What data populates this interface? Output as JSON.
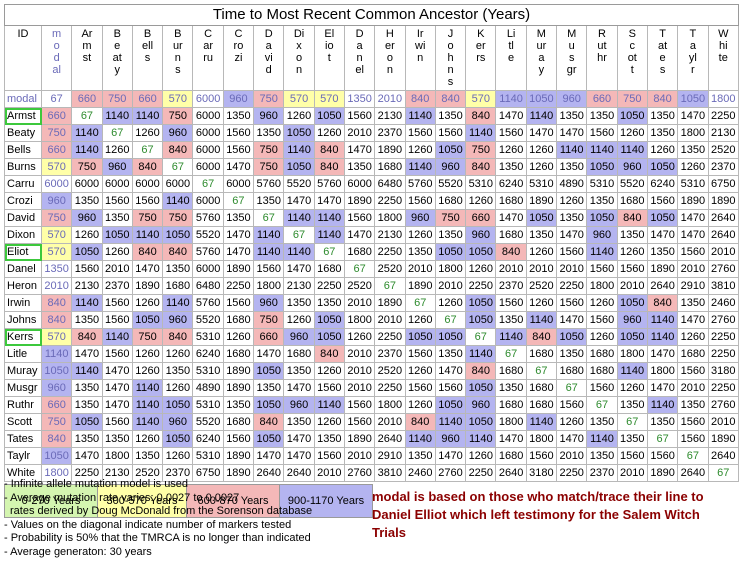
{
  "title": "Time to Most Recent Common Ancestor (Years)",
  "id_header": "ID",
  "columns": [
    "modal",
    "Armst",
    "Beaty",
    "Bells",
    "Burns",
    "Carru",
    "Crozi",
    "David",
    "Dixon",
    "Eliot",
    "Danel",
    "Heron",
    "Irwin",
    "Johns",
    "Kerrs",
    "Litle",
    "Muray",
    "Musgr",
    "Ruthr",
    "Scott",
    "Tates",
    "Taylr",
    "White"
  ],
  "rows": [
    {
      "label": "modal",
      "values": [
        "67",
        "660",
        "750",
        "660",
        "570",
        "6000",
        "960",
        "750",
        "570",
        "570",
        "1350",
        "2010",
        "840",
        "840",
        "570",
        "1140",
        "1050",
        "960",
        "660",
        "750",
        "840",
        "1050",
        "1800"
      ]
    },
    {
      "label": "Armst",
      "values": [
        "660",
        "67",
        "1140",
        "1140",
        "750",
        "6000",
        "1350",
        "960",
        "1260",
        "1050",
        "1560",
        "2130",
        "1140",
        "1350",
        "840",
        "1470",
        "1140",
        "1350",
        "1350",
        "1050",
        "1350",
        "1470",
        "2250"
      ]
    },
    {
      "label": "Beaty",
      "values": [
        "750",
        "1140",
        "67",
        "1260",
        "960",
        "6000",
        "1560",
        "1350",
        "1050",
        "1260",
        "2010",
        "2370",
        "1560",
        "1560",
        "1140",
        "1560",
        "1470",
        "1470",
        "1560",
        "1260",
        "1350",
        "1800",
        "2130"
      ]
    },
    {
      "label": "Bells",
      "values": [
        "660",
        "1140",
        "1260",
        "67",
        "840",
        "6000",
        "1560",
        "750",
        "1140",
        "840",
        "1470",
        "1890",
        "1260",
        "1050",
        "750",
        "1260",
        "1260",
        "1140",
        "1140",
        "1140",
        "1260",
        "1350",
        "2520"
      ]
    },
    {
      "label": "Burns",
      "values": [
        "570",
        "750",
        "960",
        "840",
        "67",
        "6000",
        "1470",
        "750",
        "1050",
        "840",
        "1350",
        "1680",
        "1140",
        "960",
        "840",
        "1350",
        "1260",
        "1350",
        "1050",
        "960",
        "1050",
        "1260",
        "2370"
      ]
    },
    {
      "label": "Carru",
      "values": [
        "6000",
        "6000",
        "6000",
        "6000",
        "6000",
        "67",
        "6000",
        "5760",
        "5520",
        "5760",
        "6000",
        "6480",
        "5760",
        "5520",
        "5310",
        "6240",
        "5310",
        "4890",
        "5310",
        "5520",
        "6240",
        "5310",
        "6750"
      ]
    },
    {
      "label": "Crozi",
      "values": [
        "960",
        "1350",
        "1560",
        "1560",
        "1140",
        "6000",
        "67",
        "1350",
        "1470",
        "1470",
        "1890",
        "2250",
        "1560",
        "1680",
        "1260",
        "1680",
        "1890",
        "1260",
        "1350",
        "1680",
        "1560",
        "1890",
        "1890"
      ]
    },
    {
      "label": "David",
      "values": [
        "750",
        "960",
        "1350",
        "750",
        "750",
        "5760",
        "1350",
        "67",
        "1140",
        "1140",
        "1560",
        "1800",
        "960",
        "750",
        "660",
        "1470",
        "1050",
        "1350",
        "1050",
        "840",
        "1050",
        "1470",
        "2640"
      ]
    },
    {
      "label": "Dixon",
      "values": [
        "570",
        "1260",
        "1050",
        "1140",
        "1050",
        "5520",
        "1470",
        "1140",
        "67",
        "1140",
        "1470",
        "2130",
        "1260",
        "1350",
        "960",
        "1680",
        "1350",
        "1470",
        "960",
        "1350",
        "1470",
        "1470",
        "2640"
      ]
    },
    {
      "label": "Eliot",
      "values": [
        "570",
        "1050",
        "1260",
        "840",
        "840",
        "5760",
        "1470",
        "1140",
        "1140",
        "67",
        "1680",
        "2250",
        "1350",
        "1050",
        "1050",
        "840",
        "1260",
        "1560",
        "1140",
        "1260",
        "1350",
        "1560",
        "2010"
      ]
    },
    {
      "label": "Danel",
      "values": [
        "1350",
        "1560",
        "2010",
        "1470",
        "1350",
        "6000",
        "1890",
        "1560",
        "1470",
        "1680",
        "67",
        "2520",
        "2010",
        "1800",
        "1260",
        "2010",
        "2010",
        "2010",
        "1560",
        "1560",
        "1890",
        "2010",
        "2760"
      ]
    },
    {
      "label": "Heron",
      "values": [
        "2010",
        "2130",
        "2370",
        "1890",
        "1680",
        "6480",
        "2250",
        "1800",
        "2130",
        "2250",
        "2520",
        "67",
        "1890",
        "2010",
        "2250",
        "2370",
        "2520",
        "2250",
        "1800",
        "2010",
        "2640",
        "2910",
        "3810"
      ]
    },
    {
      "label": "Irwin",
      "values": [
        "840",
        "1140",
        "1560",
        "1260",
        "1140",
        "5760",
        "1560",
        "960",
        "1350",
        "1350",
        "2010",
        "1890",
        "67",
        "1260",
        "1050",
        "1560",
        "1260",
        "1560",
        "1260",
        "1050",
        "840",
        "1350",
        "2460"
      ]
    },
    {
      "label": "Johns",
      "values": [
        "840",
        "1350",
        "1560",
        "1050",
        "960",
        "5520",
        "1680",
        "750",
        "1260",
        "1050",
        "1800",
        "2010",
        "1260",
        "67",
        "1050",
        "1350",
        "1140",
        "1470",
        "1560",
        "960",
        "1140",
        "1470",
        "2760"
      ]
    },
    {
      "label": "Kerrs",
      "values": [
        "570",
        "840",
        "1140",
        "750",
        "840",
        "5310",
        "1260",
        "660",
        "960",
        "1050",
        "1260",
        "2250",
        "1050",
        "1050",
        "67",
        "1140",
        "840",
        "1050",
        "1260",
        "1050",
        "1140",
        "1260",
        "2250"
      ]
    },
    {
      "label": "Litle",
      "values": [
        "1140",
        "1470",
        "1560",
        "1260",
        "1260",
        "6240",
        "1680",
        "1470",
        "1680",
        "840",
        "2010",
        "2370",
        "1560",
        "1350",
        "1140",
        "67",
        "1680",
        "1350",
        "1680",
        "1800",
        "1470",
        "1680",
        "2250"
      ]
    },
    {
      "label": "Muray",
      "values": [
        "1050",
        "1140",
        "1470",
        "1260",
        "1350",
        "5310",
        "1890",
        "1050",
        "1350",
        "1260",
        "2010",
        "2520",
        "1260",
        "1470",
        "840",
        "1680",
        "67",
        "1680",
        "1680",
        "1140",
        "1800",
        "1560",
        "3180"
      ]
    },
    {
      "label": "Musgr",
      "values": [
        "960",
        "1350",
        "1470",
        "1140",
        "1260",
        "4890",
        "1890",
        "1350",
        "1470",
        "1560",
        "2010",
        "2250",
        "1560",
        "1560",
        "1050",
        "1350",
        "1680",
        "67",
        "1560",
        "1260",
        "1470",
        "2010",
        "2250"
      ]
    },
    {
      "label": "Ruthr",
      "values": [
        "660",
        "1350",
        "1470",
        "1140",
        "1050",
        "5310",
        "1350",
        "1050",
        "960",
        "1140",
        "1560",
        "1800",
        "1260",
        "1050",
        "960",
        "1680",
        "1680",
        "1560",
        "67",
        "1350",
        "1140",
        "1350",
        "2760"
      ]
    },
    {
      "label": "Scott",
      "values": [
        "750",
        "1050",
        "1560",
        "1140",
        "960",
        "5520",
        "1680",
        "840",
        "1350",
        "1260",
        "1560",
        "2010",
        "840",
        "1140",
        "1050",
        "1800",
        "1140",
        "1260",
        "1350",
        "67",
        "1350",
        "1560",
        "2010"
      ]
    },
    {
      "label": "Tates",
      "values": [
        "840",
        "1350",
        "1350",
        "1260",
        "1050",
        "6240",
        "1560",
        "1050",
        "1470",
        "1350",
        "1890",
        "2640",
        "1140",
        "960",
        "1140",
        "1470",
        "1800",
        "1470",
        "1140",
        "1350",
        "67",
        "1560",
        "1890"
      ]
    },
    {
      "label": "Taylr",
      "values": [
        "1050",
        "1470",
        "1800",
        "1350",
        "1260",
        "5310",
        "1890",
        "1470",
        "1470",
        "1560",
        "2010",
        "2910",
        "1350",
        "1470",
        "1260",
        "1680",
        "1560",
        "2010",
        "1350",
        "1560",
        "1560",
        "67",
        "2640"
      ]
    },
    {
      "label": "White",
      "values": [
        "1800",
        "2250",
        "2130",
        "2520",
        "2370",
        "6750",
        "1890",
        "2640",
        "2640",
        "2010",
        "2760",
        "3810",
        "2460",
        "2760",
        "2250",
        "2640",
        "3180",
        "2250",
        "2370",
        "2010",
        "1890",
        "2640",
        "67"
      ]
    }
  ],
  "highlighted_rows": [
    "Armst",
    "Eliot",
    "Kerrs"
  ],
  "legend": [
    {
      "label": "0-270 Years",
      "color": "#d4f5b0"
    },
    {
      "label": "300-570 Years",
      "color": "#ffffa8"
    },
    {
      "label": "600-870 Years",
      "color": "#f4b8b8"
    },
    {
      "label": "900-1170 Years",
      "color": "#b4b4f0"
    }
  ],
  "notes": [
    "- Infinite allele mutation model is used",
    "- Average mutation rate varies: 0.0027 to 0.0027",
    "  rates derived by Doug McDonald from the Sorenson database",
    "- Values on the diagonal indicate number of markers tested",
    "- Probability is 50% that the TMRCA is no longer than indicated",
    "- Average generaton: 30 years"
  ],
  "remark": "modal is based on those who match/trace their line to Daniel Elliot which left testimony for the Salem Witch Trials"
}
